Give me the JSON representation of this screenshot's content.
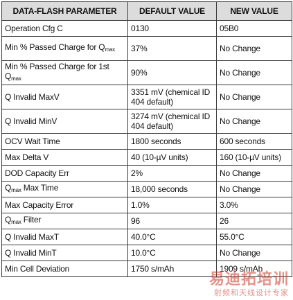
{
  "table": {
    "headers": [
      "DATA-FLASH PARAMETER",
      "DEFAULT VALUE",
      "NEW VALUE"
    ],
    "rows": [
      {
        "param": "Operation Cfg C",
        "param_sub": "",
        "param_suffix": "",
        "default": "0130",
        "new": "05B0"
      },
      {
        "param": "Min % Passed Charge for Q",
        "param_sub": "max",
        "param_suffix": "",
        "default": "37%",
        "new": "No Change"
      },
      {
        "param": "Min % Passed Charge for 1st Q",
        "param_sub": "max",
        "param_suffix": "",
        "default": "90%",
        "new": "No Change"
      },
      {
        "param": "Q Invalid MaxV",
        "param_sub": "",
        "param_suffix": "",
        "default": "3351 mV (chemical ID 404 default)",
        "new": "No Change"
      },
      {
        "param": "Q Invalid MinV",
        "param_sub": "",
        "param_suffix": "",
        "default": "3274 mV (chemical ID 404 default)",
        "new": "No Change"
      },
      {
        "param": "OCV Wait Time",
        "param_sub": "",
        "param_suffix": "",
        "default": "1800 seconds",
        "new": "600 seconds"
      },
      {
        "param": "Max Delta V",
        "param_sub": "",
        "param_suffix": "",
        "default": "40 (10-µV units)",
        "new": "160 (10-µV units)"
      },
      {
        "param": "DOD Capacity Err",
        "param_sub": "",
        "param_suffix": "",
        "default": "2%",
        "new": "No Change"
      },
      {
        "param": "Q",
        "param_sub": "max",
        "param_suffix": " Max Time",
        "default": "18,000 seconds",
        "new": "No Change"
      },
      {
        "param": "Max Capacity Error",
        "param_sub": "",
        "param_suffix": "",
        "default": "1.0%",
        "new": "3.0%"
      },
      {
        "param": "Q",
        "param_sub": "max",
        "param_suffix": " Filter",
        "default": "96",
        "new": "26"
      },
      {
        "param": "Q Invalid MaxT",
        "param_sub": "",
        "param_suffix": "",
        "default": "40.0°C",
        "new": "55.0°C"
      },
      {
        "param": "Q Invalid MinT",
        "param_sub": "",
        "param_suffix": "",
        "default": "10.0°C",
        "new": "No Change"
      },
      {
        "param": "Min Cell Deviation",
        "param_sub": "",
        "param_suffix": "",
        "default": "1750 s/mAh",
        "new": "1909 s/mAh"
      }
    ]
  },
  "watermark": {
    "title": "易迪拓培训",
    "subtitle": "射频和天线设计专家",
    "color": "#cd3728"
  }
}
